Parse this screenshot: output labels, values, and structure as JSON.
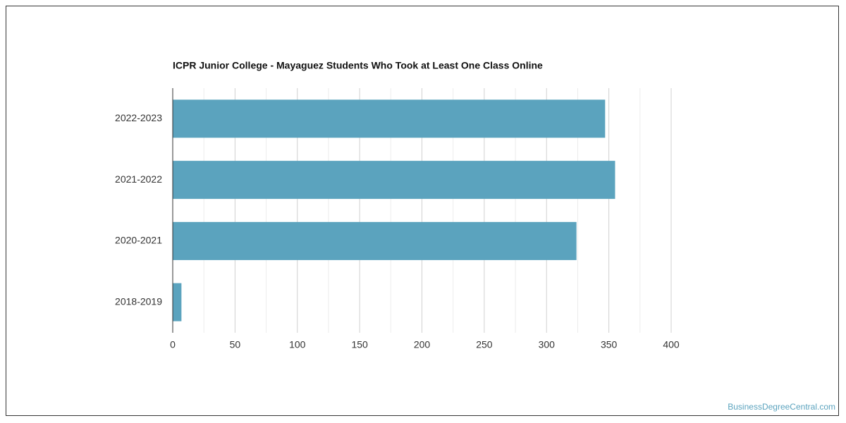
{
  "chart_data": {
    "type": "hbar",
    "title": "ICPR Junior College - Mayaguez Students Who Took at Least One Class Online",
    "categories": [
      "2022-2023",
      "2021-2022",
      "2020-2021",
      "2018-2019"
    ],
    "values": [
      347,
      355,
      324,
      7
    ],
    "color": "#5ba3be",
    "xlim": [
      0,
      400
    ],
    "xticks": [
      0,
      50,
      100,
      150,
      200,
      250,
      300,
      350,
      400
    ],
    "minor_xticks": [
      25,
      75,
      125,
      175,
      225,
      275,
      325,
      375
    ],
    "grid": true,
    "source": "BusinessDegreeCentral.com"
  }
}
